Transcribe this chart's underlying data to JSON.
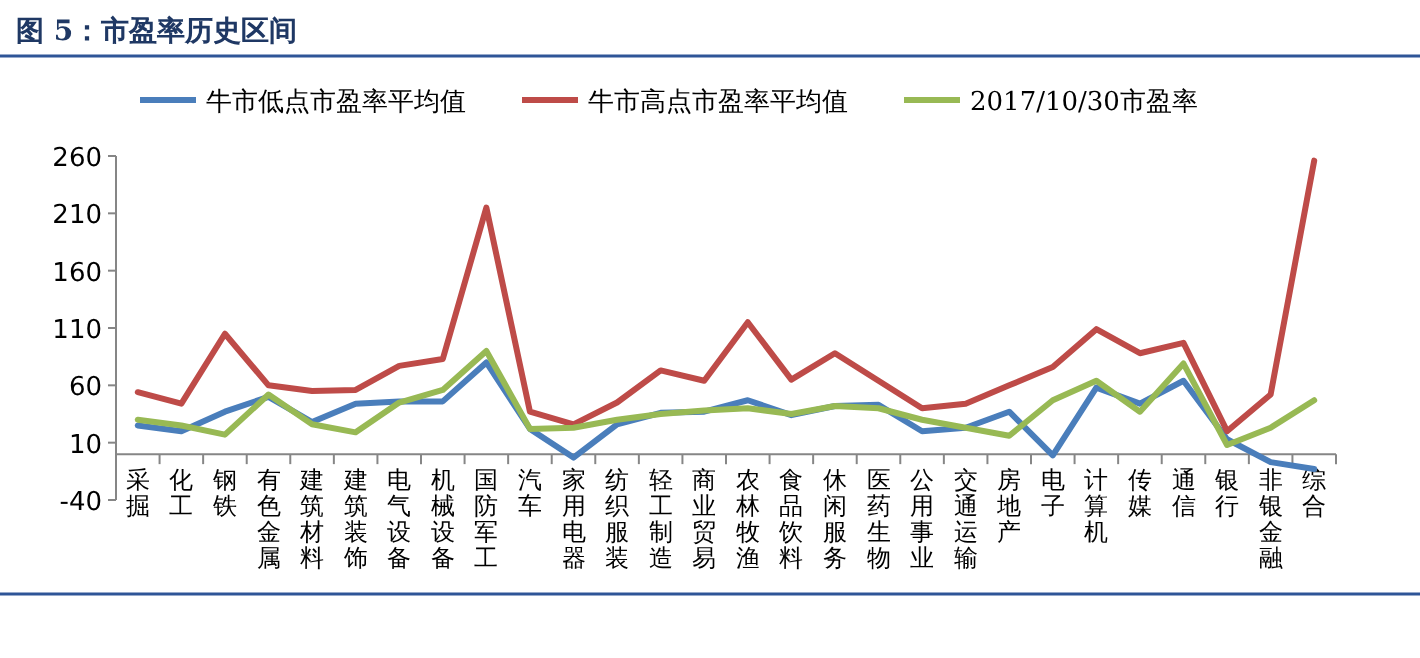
{
  "chart_data": {
    "type": "line",
    "title": "图 5：市盈率历史区间",
    "categories": [
      "采掘",
      "化工",
      "钢铁",
      "有色金属",
      "建筑材料",
      "建筑装饰",
      "电气设备",
      "机械设备",
      "国防军工",
      "汽车",
      "家用电器",
      "纺织服装",
      "轻工制造",
      "商业贸易",
      "农林牧渔",
      "食品饮料",
      "休闲服务",
      "医药生物",
      "公用事业",
      "交通运输",
      "房地产",
      "电子",
      "计算机",
      "传媒",
      "通信",
      "银行",
      "非银金融",
      "综合"
    ],
    "series": [
      {
        "name": "牛市低点市盈率平均值",
        "color": "#4a7ebb",
        "values": [
          25,
          20,
          37,
          50,
          28,
          44,
          46,
          46,
          80,
          22,
          -3,
          26,
          36,
          37,
          47,
          34,
          42,
          43,
          20,
          23,
          37,
          -1,
          58,
          44,
          64,
          13,
          -7,
          -13
        ]
      },
      {
        "name": "牛市高点市盈率平均值",
        "color": "#be4b48",
        "values": [
          54,
          44,
          105,
          60,
          55,
          56,
          77,
          83,
          215,
          37,
          26,
          45,
          73,
          64,
          115,
          65,
          88,
          64,
          40,
          44,
          60,
          76,
          109,
          88,
          97,
          20,
          52,
          256
        ]
      },
      {
        "name": "2017/10/30市盈率",
        "color": "#98b954",
        "values": [
          30,
          25,
          17,
          52,
          26,
          19,
          45,
          56,
          90,
          22,
          23,
          30,
          35,
          38,
          40,
          35,
          42,
          40,
          30,
          23,
          16,
          47,
          64,
          37,
          79,
          8,
          23,
          47
        ]
      }
    ],
    "ylim": [
      -40,
      260
    ],
    "yticks": [
      -40,
      10,
      60,
      110,
      160,
      210,
      260
    ],
    "legend": "top",
    "grid": false
  }
}
